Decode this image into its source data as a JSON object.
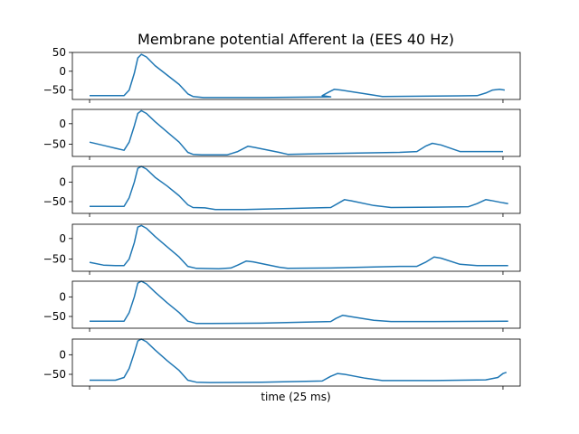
{
  "chart_data": {
    "type": "line",
    "title": "Membrane potential Afferent Ia (EES 40 Hz)",
    "xlabel": "time (25 ms)",
    "ylabel": "",
    "xlim": [
      -1,
      25
    ],
    "color": "#1f77b4",
    "grid": false,
    "legend": "none",
    "panels": [
      {
        "ylim": [
          -75,
          50
        ],
        "yticks": [
          50,
          0,
          -50
        ],
        "points": [
          [
            0,
            -65
          ],
          [
            2,
            -65
          ],
          [
            2.3,
            -50
          ],
          [
            2.6,
            -5
          ],
          [
            2.8,
            35
          ],
          [
            3.0,
            45
          ],
          [
            3.3,
            38
          ],
          [
            3.8,
            15
          ],
          [
            4.5,
            -10
          ],
          [
            5.2,
            -35
          ],
          [
            5.7,
            -60
          ],
          [
            6.0,
            -67
          ],
          [
            6.6,
            -70
          ],
          [
            10,
            -70
          ],
          [
            14,
            -68
          ],
          [
            13.5,
            -65
          ],
          [
            13.9,
            -55
          ],
          [
            14.2,
            -48
          ],
          [
            14.6,
            -50
          ],
          [
            16,
            -60
          ],
          [
            17,
            -67
          ],
          [
            20,
            -66
          ],
          [
            22.5,
            -65
          ],
          [
            23,
            -58
          ],
          [
            23.4,
            -50
          ],
          [
            23.8,
            -48
          ],
          [
            24.1,
            -50
          ]
        ]
      },
      {
        "ylim": [
          -80,
          35
        ],
        "yticks": [
          0,
          -50
        ],
        "points": [
          [
            0,
            -45
          ],
          [
            1,
            -55
          ],
          [
            2,
            -65
          ],
          [
            2.3,
            -45
          ],
          [
            2.6,
            -5
          ],
          [
            2.8,
            25
          ],
          [
            3.0,
            32
          ],
          [
            3.3,
            25
          ],
          [
            3.8,
            5
          ],
          [
            4.5,
            -20
          ],
          [
            5.2,
            -45
          ],
          [
            5.7,
            -70
          ],
          [
            6.0,
            -75
          ],
          [
            6.5,
            -76
          ],
          [
            8,
            -76
          ],
          [
            8.6,
            -68
          ],
          [
            9.2,
            -55
          ],
          [
            9.6,
            -58
          ],
          [
            11,
            -70
          ],
          [
            11.5,
            -75
          ],
          [
            14,
            -73
          ],
          [
            18,
            -70
          ],
          [
            19,
            -68
          ],
          [
            19.5,
            -55
          ],
          [
            19.9,
            -48
          ],
          [
            20.4,
            -52
          ],
          [
            21.5,
            -68
          ],
          [
            22.5,
            -68
          ],
          [
            24,
            -68
          ]
        ]
      },
      {
        "ylim": [
          -80,
          40
        ],
        "yticks": [
          0,
          -50
        ],
        "points": [
          [
            0,
            -62
          ],
          [
            2,
            -62
          ],
          [
            2.3,
            -40
          ],
          [
            2.6,
            0
          ],
          [
            2.8,
            35
          ],
          [
            3.0,
            40
          ],
          [
            3.3,
            33
          ],
          [
            3.8,
            12
          ],
          [
            4.5,
            -10
          ],
          [
            5.2,
            -35
          ],
          [
            5.7,
            -58
          ],
          [
            6.0,
            -65
          ],
          [
            6.7,
            -66
          ],
          [
            7.3,
            -70
          ],
          [
            9,
            -70
          ],
          [
            14,
            -65
          ],
          [
            14.4,
            -55
          ],
          [
            14.8,
            -45
          ],
          [
            15.2,
            -48
          ],
          [
            16.5,
            -60
          ],
          [
            17.5,
            -65
          ],
          [
            20,
            -64
          ],
          [
            22,
            -63
          ],
          [
            22.5,
            -55
          ],
          [
            23,
            -45
          ],
          [
            23.3,
            -47
          ],
          [
            24,
            -53
          ],
          [
            24.3,
            -55
          ]
        ]
      },
      {
        "ylim": [
          -80,
          35
        ],
        "yticks": [
          0,
          -50
        ],
        "points": [
          [
            0,
            -58
          ],
          [
            0.8,
            -65
          ],
          [
            1.5,
            -66
          ],
          [
            2,
            -66
          ],
          [
            2.3,
            -50
          ],
          [
            2.6,
            -10
          ],
          [
            2.8,
            28
          ],
          [
            3.0,
            32
          ],
          [
            3.3,
            25
          ],
          [
            3.8,
            5
          ],
          [
            4.5,
            -20
          ],
          [
            5.2,
            -45
          ],
          [
            5.7,
            -68
          ],
          [
            6.2,
            -73
          ],
          [
            7.5,
            -74
          ],
          [
            8.2,
            -72
          ],
          [
            8.6,
            -65
          ],
          [
            9.1,
            -55
          ],
          [
            9.5,
            -57
          ],
          [
            11,
            -70
          ],
          [
            11.5,
            -73
          ],
          [
            14,
            -72
          ],
          [
            18,
            -68
          ],
          [
            19,
            -68
          ],
          [
            19.5,
            -58
          ],
          [
            20,
            -45
          ],
          [
            20.4,
            -48
          ],
          [
            21.5,
            -63
          ],
          [
            22.5,
            -66
          ],
          [
            24.3,
            -66
          ]
        ]
      },
      {
        "ylim": [
          -80,
          40
        ],
        "yticks": [
          0,
          -50
        ],
        "points": [
          [
            0,
            -62
          ],
          [
            2,
            -62
          ],
          [
            2.3,
            -40
          ],
          [
            2.6,
            0
          ],
          [
            2.8,
            35
          ],
          [
            3.0,
            40
          ],
          [
            3.3,
            33
          ],
          [
            3.8,
            12
          ],
          [
            4.5,
            -15
          ],
          [
            5.2,
            -40
          ],
          [
            5.7,
            -62
          ],
          [
            6.2,
            -68
          ],
          [
            7,
            -68
          ],
          [
            10,
            -67
          ],
          [
            14,
            -63
          ],
          [
            14.3,
            -55
          ],
          [
            14.7,
            -47
          ],
          [
            15.1,
            -50
          ],
          [
            16.5,
            -60
          ],
          [
            17.5,
            -63
          ],
          [
            20,
            -63
          ],
          [
            24.3,
            -62
          ]
        ]
      },
      {
        "ylim": [
          -80,
          40
        ],
        "yticks": [
          0,
          -50
        ],
        "points": [
          [
            0,
            -65
          ],
          [
            1.5,
            -65
          ],
          [
            2,
            -58
          ],
          [
            2.3,
            -35
          ],
          [
            2.6,
            5
          ],
          [
            2.8,
            35
          ],
          [
            3.0,
            40
          ],
          [
            3.3,
            33
          ],
          [
            3.8,
            12
          ],
          [
            4.5,
            -15
          ],
          [
            5.2,
            -40
          ],
          [
            5.7,
            -65
          ],
          [
            6.2,
            -70
          ],
          [
            7,
            -71
          ],
          [
            10,
            -70
          ],
          [
            13.5,
            -67
          ],
          [
            14,
            -55
          ],
          [
            14.4,
            -48
          ],
          [
            14.8,
            -50
          ],
          [
            16,
            -60
          ],
          [
            17,
            -66
          ],
          [
            20,
            -66
          ],
          [
            23,
            -64
          ],
          [
            23.7,
            -58
          ],
          [
            24,
            -48
          ],
          [
            24.2,
            -45
          ]
        ]
      }
    ]
  }
}
